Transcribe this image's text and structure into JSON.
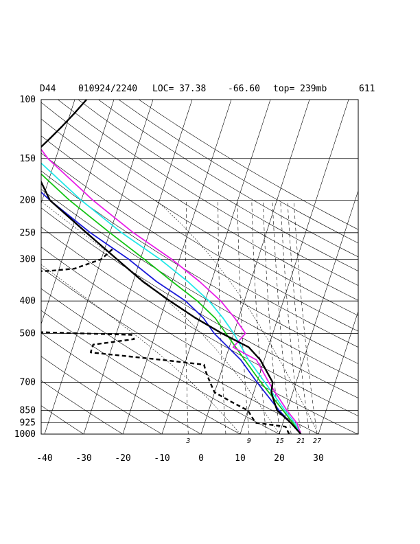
{
  "header": {
    "station": "D44",
    "datetime": "010924/2240",
    "location_text": "LOC= 37.38",
    "longitude": "-66.60",
    "top_text": "top= 239mb",
    "number": "611"
  },
  "chart_data": {
    "type": "line",
    "title": "",
    "xlabel": "",
    "ylabel": "",
    "pressure_ticks": [
      100,
      150,
      200,
      250,
      300,
      400,
      500,
      700,
      850,
      925,
      1000
    ],
    "temperature_ticks": [
      -40,
      -30,
      -20,
      -10,
      0,
      10,
      20,
      30
    ],
    "mixing_ratio_labels": [
      "3",
      "9",
      "15",
      "21",
      "27"
    ],
    "ylim": [
      1000,
      100
    ],
    "xlim_at_1000mb": [
      -40,
      40
    ],
    "y_scale": "log",
    "skew": true,
    "grid": true,
    "colors": {
      "temperature": "#000000",
      "dewpoint": "#000000",
      "parcel_blue": "#1a1ad8",
      "parcel_green": "#12c412",
      "parcel_cyan": "#22e8e8",
      "parcel_magenta": "#e81ee8"
    },
    "series": [
      {
        "style": "solid-black",
        "points": [
          [
            1000,
            25.5
          ],
          [
            925,
            22
          ],
          [
            850,
            17.5
          ],
          [
            800,
            16
          ],
          [
            750,
            14.5
          ],
          [
            700,
            14
          ],
          [
            600,
            9
          ],
          [
            550,
            5
          ],
          [
            500,
            -3
          ],
          [
            450,
            -11
          ],
          [
            400,
            -19
          ],
          [
            350,
            -27.5
          ],
          [
            300,
            -36
          ],
          [
            250,
            -46
          ],
          [
            200,
            -58
          ],
          [
            175,
            -62
          ],
          [
            150,
            -66.5
          ],
          [
            140,
            -65
          ],
          [
            130,
            -63
          ],
          [
            120,
            -61
          ],
          [
            110,
            -59
          ],
          [
            100,
            -57
          ]
        ]
      },
      {
        "style": "dashed-black",
        "points": [
          [
            1000,
            22.5
          ],
          [
            950,
            21
          ],
          [
            925,
            13
          ],
          [
            900,
            12
          ],
          [
            850,
            10
          ],
          [
            800,
            5
          ],
          [
            750,
            0
          ],
          [
            700,
            -2
          ],
          [
            650,
            -4
          ],
          [
            620,
            -5
          ],
          [
            600,
            -16
          ],
          [
            570,
            -35
          ],
          [
            540,
            -35
          ],
          [
            520,
            -25
          ],
          [
            505,
            -26
          ],
          [
            490,
            -65
          ],
          [
            480,
            -80
          ],
          [
            470,
            -68
          ],
          [
            450,
            -70
          ],
          [
            420,
            -65
          ],
          [
            410,
            -60
          ],
          [
            400,
            -62
          ],
          [
            380,
            -67
          ],
          [
            350,
            -70
          ],
          [
            330,
            -69
          ],
          [
            325,
            -52
          ],
          [
            320,
            -46
          ],
          [
            300,
            -40
          ],
          [
            280,
            -38
          ]
        ]
      },
      {
        "style": "solid-blue",
        "points": [
          [
            1000,
            25.5
          ],
          [
            925,
            22
          ],
          [
            850,
            18
          ],
          [
            700,
            10
          ],
          [
            600,
            4
          ],
          [
            500,
            -5
          ],
          [
            450,
            -9
          ],
          [
            400,
            -15
          ],
          [
            350,
            -24
          ],
          [
            300,
            -33
          ],
          [
            250,
            -45
          ],
          [
            200,
            -58
          ],
          [
            150,
            -73
          ],
          [
            100,
            -88
          ]
        ]
      },
      {
        "style": "solid-green",
        "points": [
          [
            1000,
            25.5
          ],
          [
            925,
            22.5
          ],
          [
            850,
            19
          ],
          [
            700,
            11
          ],
          [
            600,
            5
          ],
          [
            500,
            -2
          ],
          [
            450,
            -6
          ],
          [
            400,
            -12
          ],
          [
            350,
            -20
          ],
          [
            300,
            -29
          ],
          [
            250,
            -40
          ],
          [
            200,
            -53
          ],
          [
            150,
            -68
          ],
          [
            100,
            -85
          ]
        ]
      },
      {
        "style": "solid-cyan",
        "points": [
          [
            1000,
            25.5
          ],
          [
            925,
            23
          ],
          [
            850,
            19.5
          ],
          [
            700,
            12
          ],
          [
            600,
            6
          ],
          [
            500,
            0
          ],
          [
            450,
            -4
          ],
          [
            400,
            -9
          ],
          [
            350,
            -16
          ],
          [
            300,
            -25
          ],
          [
            250,
            -37
          ],
          [
            200,
            -50
          ],
          [
            150,
            -65
          ],
          [
            100,
            -82
          ]
        ]
      },
      {
        "style": "solid-magenta",
        "points": [
          [
            1000,
            25.5
          ],
          [
            925,
            23.5
          ],
          [
            850,
            20
          ],
          [
            700,
            13
          ],
          [
            600,
            8
          ],
          [
            550,
            1
          ],
          [
            500,
            3
          ],
          [
            450,
            -1
          ],
          [
            400,
            -6
          ],
          [
            350,
            -13
          ],
          [
            300,
            -22
          ],
          [
            250,
            -34
          ],
          [
            200,
            -47
          ],
          [
            150,
            -62
          ],
          [
            100,
            -78
          ]
        ]
      }
    ]
  }
}
